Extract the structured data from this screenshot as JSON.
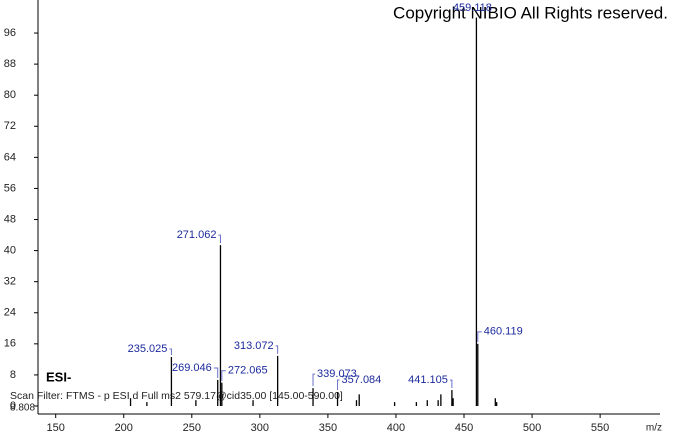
{
  "chart_data": {
    "type": "spectrum",
    "title": "Copyright NIBIO All Rights reserved.",
    "ionization": "ESI-",
    "scan_filter": "Scan Filter: FTMS - p ESI d Full ms2 579.17@cid35.00 [145.00-590.00]",
    "intensity": "8.808",
    "x_label": "m/z",
    "xlim": [
      137,
      594
    ],
    "xticks": [
      150,
      200,
      250,
      300,
      350,
      400,
      450,
      500,
      550
    ],
    "ylim": [
      0,
      100
    ],
    "yticks": [
      0,
      8,
      16,
      24,
      32,
      40,
      48,
      56,
      64,
      72,
      80,
      88,
      96
    ],
    "peaks": {
      "x": [
        235.025,
        269.046,
        271.062,
        272.065,
        313.072,
        339.073,
        357.084,
        441.105,
        459.118,
        460.119
      ],
      "values": [
        12.6,
        6.7,
        41.4,
        6.0,
        12.9,
        4.6,
        3.6,
        4.1,
        100,
        16.0
      ]
    },
    "minor_peaks": {
      "x": [
        205,
        217,
        253,
        295,
        371,
        373,
        399,
        415,
        423,
        431,
        433,
        442,
        473,
        474
      ],
      "values": [
        2,
        1,
        1.5,
        1.5,
        1.5,
        3,
        1,
        1,
        1.5,
        1.5,
        3,
        2,
        2,
        1
      ]
    }
  }
}
